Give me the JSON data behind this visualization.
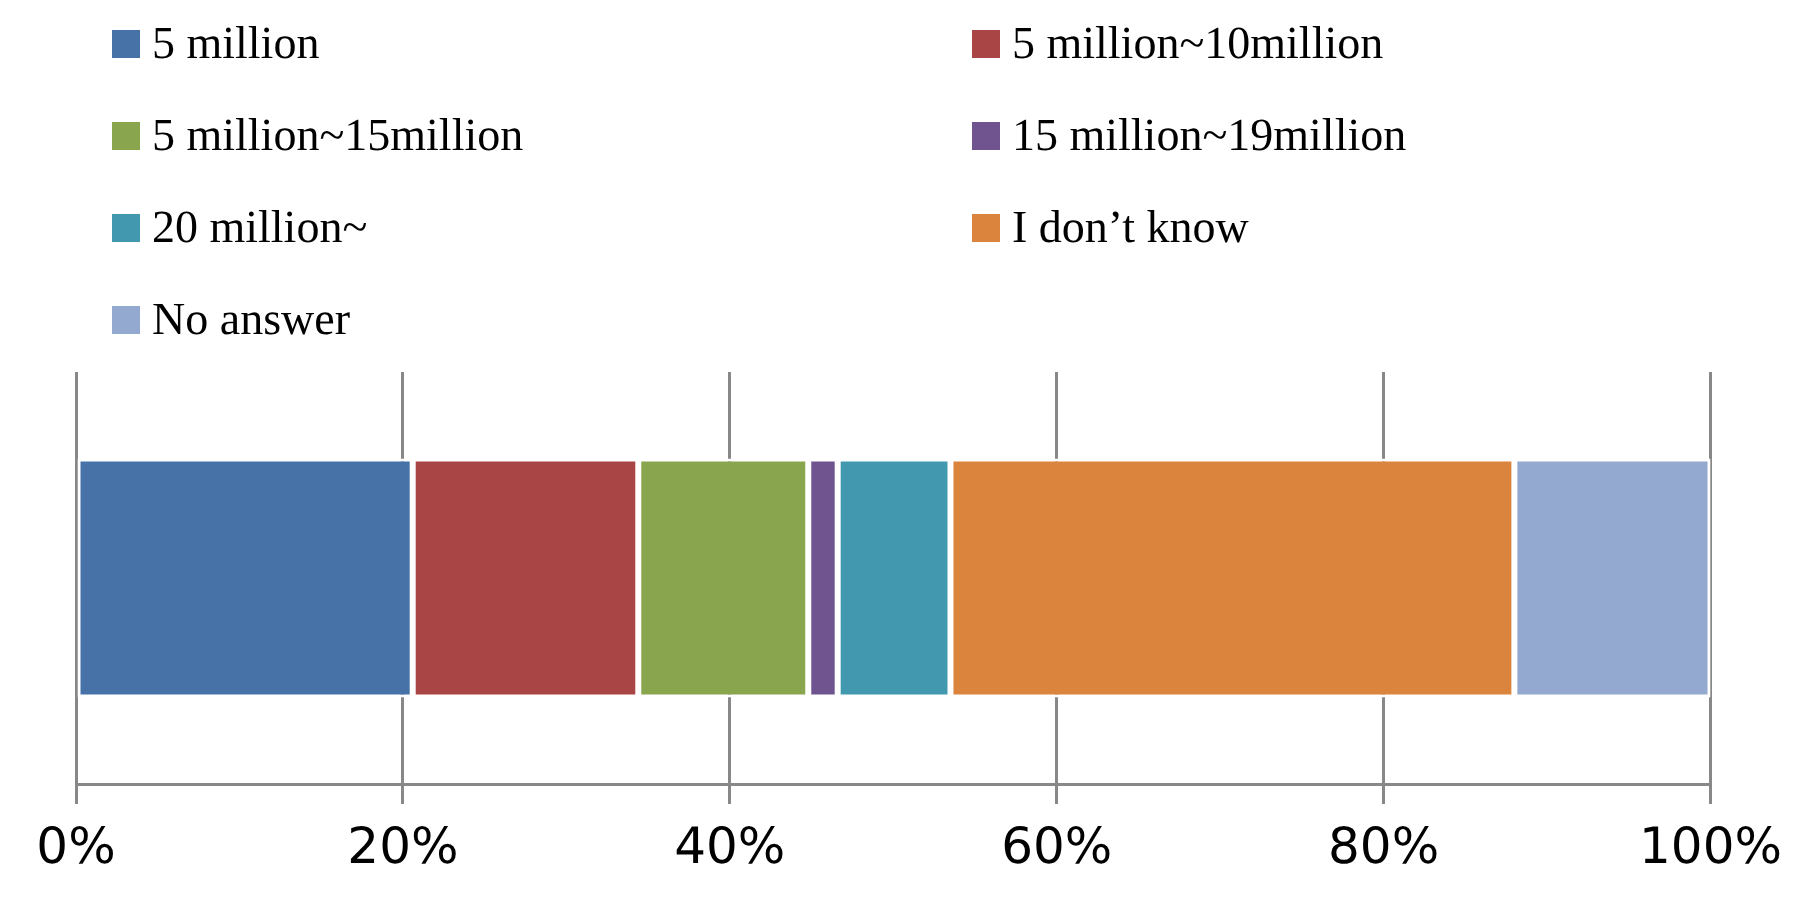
{
  "chart_data": {
    "type": "bar",
    "orientation": "horizontal",
    "stacked": true,
    "categories": [
      null
    ],
    "series": [
      {
        "name": "5 million",
        "color": "#4672a7",
        "values": [
          20.6
        ]
      },
      {
        "name": "5 million~10million",
        "color": "#a94645",
        "values": [
          13.8
        ]
      },
      {
        "name": "5 million~15million",
        "color": "#89a54e",
        "values": [
          10.4
        ]
      },
      {
        "name": "15 million~19million",
        "color": "#6f548f",
        "values": [
          1.8
        ]
      },
      {
        "name": "20 million~",
        "color": "#4198af",
        "values": [
          6.9
        ]
      },
      {
        "name": "I don’t know",
        "color": "#db843d",
        "values": [
          34.5
        ]
      },
      {
        "name": "No answer",
        "color": "#93a9d0",
        "values": [
          12.0
        ]
      }
    ],
    "xlim": [
      0,
      100
    ],
    "xticks": [
      {
        "value": 0,
        "label": "0%"
      },
      {
        "value": 20,
        "label": "20%"
      },
      {
        "value": 40,
        "label": "40%"
      },
      {
        "value": 60,
        "label": "60%"
      },
      {
        "value": 80,
        "label": "80%"
      },
      {
        "value": 100,
        "label": "100%"
      }
    ],
    "grid": "x",
    "legend": "top"
  }
}
